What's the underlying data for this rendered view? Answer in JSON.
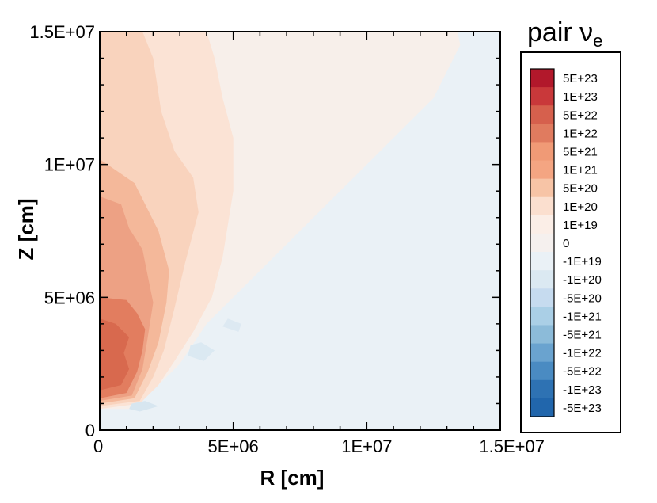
{
  "chart_data": {
    "type": "heatmap",
    "title": "",
    "xlabel": "R [cm]",
    "ylabel": "Z [cm]",
    "xlim": [
      0,
      15000000
    ],
    "ylim": [
      0,
      15000000
    ],
    "x_ticks": [
      "0",
      "5E+06",
      "1E+07",
      "1.5E+07"
    ],
    "y_ticks": [
      "0",
      "5E+06",
      "1E+07",
      "1.5E+07"
    ],
    "colorbar": {
      "title": "pair",
      "title_symbol": "ν",
      "title_subscript": "e",
      "placement": "right",
      "levels": [
        {
          "label": "5E+23",
          "color": "#b2182b"
        },
        {
          "label": "1E+23",
          "color": "#c9383a"
        },
        {
          "label": "5E+22",
          "color": "#d6604d"
        },
        {
          "label": "1E+22",
          "color": "#e07b5f"
        },
        {
          "label": "5E+21",
          "color": "#f09a76"
        },
        {
          "label": "1E+21",
          "color": "#f4a582"
        },
        {
          "label": "5E+20",
          "color": "#f7c4a6"
        },
        {
          "label": "1E+20",
          "color": "#fbdfcf"
        },
        {
          "label": "1E+19",
          "color": "#fbeee7"
        },
        {
          "label": "0",
          "color": "#f5f0ee"
        },
        {
          "label": "-1E+19",
          "color": "#eaf1f6"
        },
        {
          "label": "-1E+20",
          "color": "#dbe9f2"
        },
        {
          "label": "-5E+20",
          "color": "#c6dbef"
        },
        {
          "label": "-1E+21",
          "color": "#aacfe6"
        },
        {
          "label": "-5E+21",
          "color": "#8cbbd9"
        },
        {
          "label": "-1E+22",
          "color": "#6aa3cf"
        },
        {
          "label": "-5E+22",
          "color": "#4a8bc2"
        },
        {
          "label": "-1E+23",
          "color": "#2e72b3"
        },
        {
          "label": "-5E+23",
          "color": "#2166ac"
        }
      ]
    },
    "regions": [
      {
        "level": "0",
        "color": "#eaf1f6",
        "points": [
          [
            0,
            0
          ],
          [
            15000000,
            0
          ],
          [
            15000000,
            15000000
          ],
          [
            0,
            15000000
          ]
        ]
      },
      {
        "level": "1E+19",
        "color": "#f7efea",
        "points": [
          [
            0,
            800000
          ],
          [
            1200000,
            800000
          ],
          [
            2000000,
            1500000
          ],
          [
            3000000,
            2500000
          ],
          [
            4000000,
            4000000
          ],
          [
            5000000,
            5000000
          ],
          [
            6500000,
            6500000
          ],
          [
            8000000,
            8000000
          ],
          [
            10000000,
            10000000
          ],
          [
            12500000,
            12500000
          ],
          [
            13500000,
            14500000
          ],
          [
            13400000,
            15000000
          ],
          [
            0,
            15000000
          ]
        ]
      },
      {
        "level": "1E+20",
        "color": "#fbe3d5",
        "points": [
          [
            0,
            800000
          ],
          [
            1500000,
            1000000
          ],
          [
            2200000,
            1700000
          ],
          [
            2800000,
            2600000
          ],
          [
            3500000,
            3700000
          ],
          [
            4200000,
            5000000
          ],
          [
            4600000,
            6500000
          ],
          [
            5000000,
            9000000
          ],
          [
            5000000,
            11000000
          ],
          [
            4600000,
            12500000
          ],
          [
            4300000,
            14000000
          ],
          [
            4000000,
            15000000
          ],
          [
            0,
            15000000
          ]
        ]
      },
      {
        "level": "5E+20",
        "color": "#f9d3bd",
        "points": [
          [
            0,
            900000
          ],
          [
            1500000,
            1100000
          ],
          [
            2000000,
            2000000
          ],
          [
            2400000,
            3000000
          ],
          [
            2800000,
            4600000
          ],
          [
            3200000,
            6300000
          ],
          [
            3700000,
            8200000
          ],
          [
            3500000,
            9500000
          ],
          [
            2800000,
            10500000
          ],
          [
            2300000,
            12000000
          ],
          [
            2000000,
            14000000
          ],
          [
            1600000,
            15000000
          ],
          [
            0,
            15000000
          ]
        ]
      },
      {
        "level": "1E+21",
        "color": "#f4b89a",
        "points": [
          [
            0,
            1000000
          ],
          [
            1300000,
            1200000
          ],
          [
            1800000,
            2200000
          ],
          [
            2200000,
            3300000
          ],
          [
            2500000,
            4800000
          ],
          [
            2600000,
            6000000
          ],
          [
            2200000,
            7500000
          ],
          [
            1300000,
            9300000
          ],
          [
            0,
            10200000
          ]
        ]
      },
      {
        "level": "5E+21",
        "color": "#eda184",
        "points": [
          [
            0,
            1100000
          ],
          [
            1200000,
            1300000
          ],
          [
            1600000,
            2300000
          ],
          [
            1800000,
            3500000
          ],
          [
            2000000,
            4800000
          ],
          [
            1800000,
            5800000
          ],
          [
            1600000,
            6800000
          ],
          [
            1100000,
            7600000
          ],
          [
            800000,
            8500000
          ],
          [
            0,
            8800000
          ]
        ]
      },
      {
        "level": "1E+22",
        "color": "#e27d5f",
        "points": [
          [
            0,
            1200000
          ],
          [
            1000000,
            1400000
          ],
          [
            1400000,
            2200000
          ],
          [
            1600000,
            3000000
          ],
          [
            1700000,
            3800000
          ],
          [
            1400000,
            4400000
          ],
          [
            1000000,
            4900000
          ],
          [
            0,
            5000000
          ]
        ]
      },
      {
        "level": "5E+22",
        "color": "#d8694e",
        "points": [
          [
            0,
            1500000
          ],
          [
            800000,
            1700000
          ],
          [
            1100000,
            2300000
          ],
          [
            900000,
            2900000
          ],
          [
            1100000,
            3500000
          ],
          [
            600000,
            4000000
          ],
          [
            0,
            4200000
          ]
        ]
      }
    ],
    "negative_patches": [
      {
        "level": "-1E+19",
        "color": "#d7e6f0",
        "points": [
          [
            1100000,
            800000
          ],
          [
            1500000,
            700000
          ],
          [
            2200000,
            900000
          ],
          [
            1700000,
            1100000
          ],
          [
            1200000,
            1000000
          ]
        ]
      },
      {
        "level": "-1E+19",
        "color": "#dbe9f2",
        "points": [
          [
            3300000,
            2800000
          ],
          [
            3900000,
            2600000
          ],
          [
            4300000,
            3000000
          ],
          [
            3800000,
            3300000
          ],
          [
            3400000,
            3200000
          ]
        ]
      },
      {
        "level": "-1E+19",
        "color": "#dde9f2",
        "points": [
          [
            4600000,
            3900000
          ],
          [
            5200000,
            3700000
          ],
          [
            5300000,
            4000000
          ],
          [
            4800000,
            4200000
          ]
        ]
      }
    ]
  }
}
